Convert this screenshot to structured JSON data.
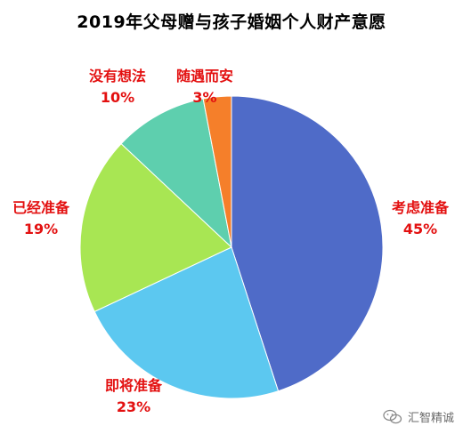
{
  "chart_data": {
    "type": "pie",
    "title": "2019年父母赠与孩子婚姻个人财产意愿",
    "slices": [
      {
        "label": "考虑准备",
        "value": 45,
        "value_label": "45%",
        "color": "#4f6bc8"
      },
      {
        "label": "即将准备",
        "value": 23,
        "value_label": "23%",
        "color": "#5cc8f0"
      },
      {
        "label": "已经准备",
        "value": 19,
        "value_label": "19%",
        "color": "#a8e653"
      },
      {
        "label": "没有想法",
        "value": 10,
        "value_label": "10%",
        "color": "#5ecfae"
      },
      {
        "label": "随遇而安",
        "value": 3,
        "value_label": "3%",
        "color": "#f57f2a"
      }
    ],
    "start_angle_deg": 0,
    "direction": "clockwise",
    "label_color": "#e31010"
  },
  "watermark": {
    "text": "汇智精诚",
    "icon": "wechat-icon"
  }
}
